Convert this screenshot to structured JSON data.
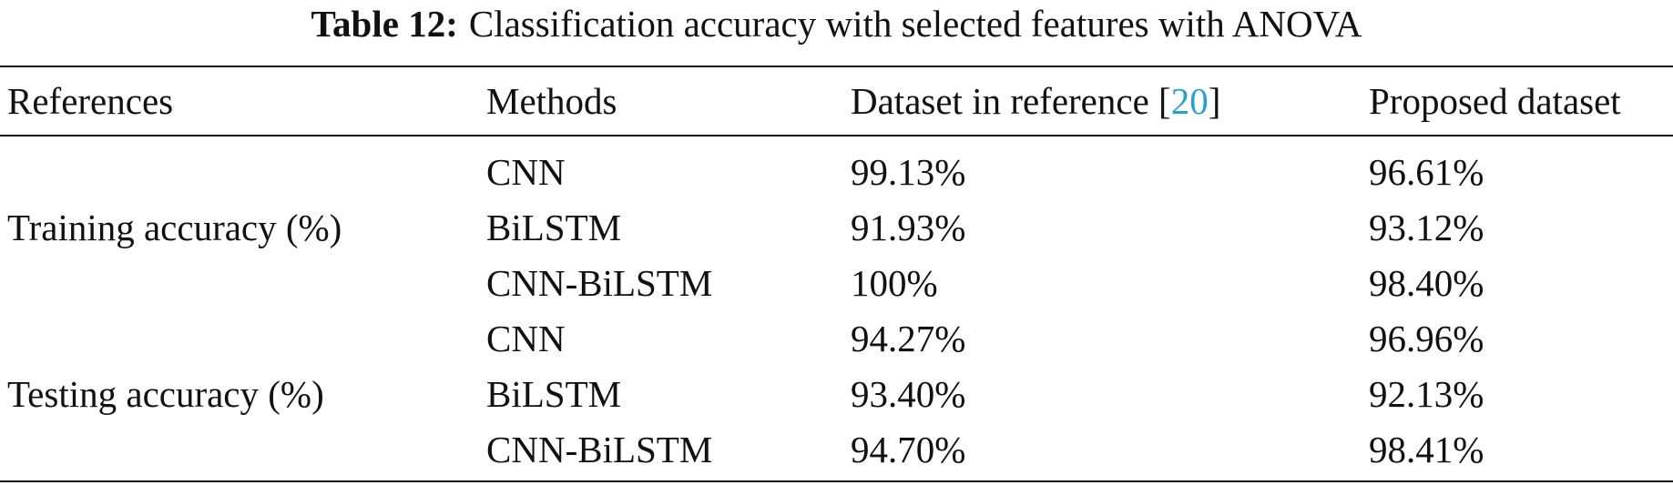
{
  "caption": {
    "label": "Table 12:",
    "text": "Classification accuracy with selected features with ANOVA"
  },
  "header": {
    "references": "References",
    "methods": "Methods",
    "dataset_ref_prefix": "Dataset in reference [",
    "dataset_ref_cite": "20",
    "dataset_ref_suffix": "]",
    "proposed": "Proposed dataset"
  },
  "groups": [
    {
      "label": "Training accuracy (%)",
      "rows": [
        {
          "method": "CNN",
          "reference": "99.13%",
          "proposed": "96.61%"
        },
        {
          "method": "BiLSTM",
          "reference": "91.93%",
          "proposed": "93.12%"
        },
        {
          "method": "CNN-BiLSTM",
          "reference": "100%",
          "proposed": "98.40%"
        }
      ]
    },
    {
      "label": "Testing accuracy (%)",
      "rows": [
        {
          "method": "CNN",
          "reference": "94.27%",
          "proposed": "96.96%"
        },
        {
          "method": "BiLSTM",
          "reference": "93.40%",
          "proposed": "92.13%"
        },
        {
          "method": "CNN-BiLSTM",
          "reference": "94.70%",
          "proposed": "98.41%"
        }
      ]
    }
  ],
  "colors": {
    "text": "#111111",
    "citation_link": "#2a9fd0",
    "background": "#ffffff"
  }
}
